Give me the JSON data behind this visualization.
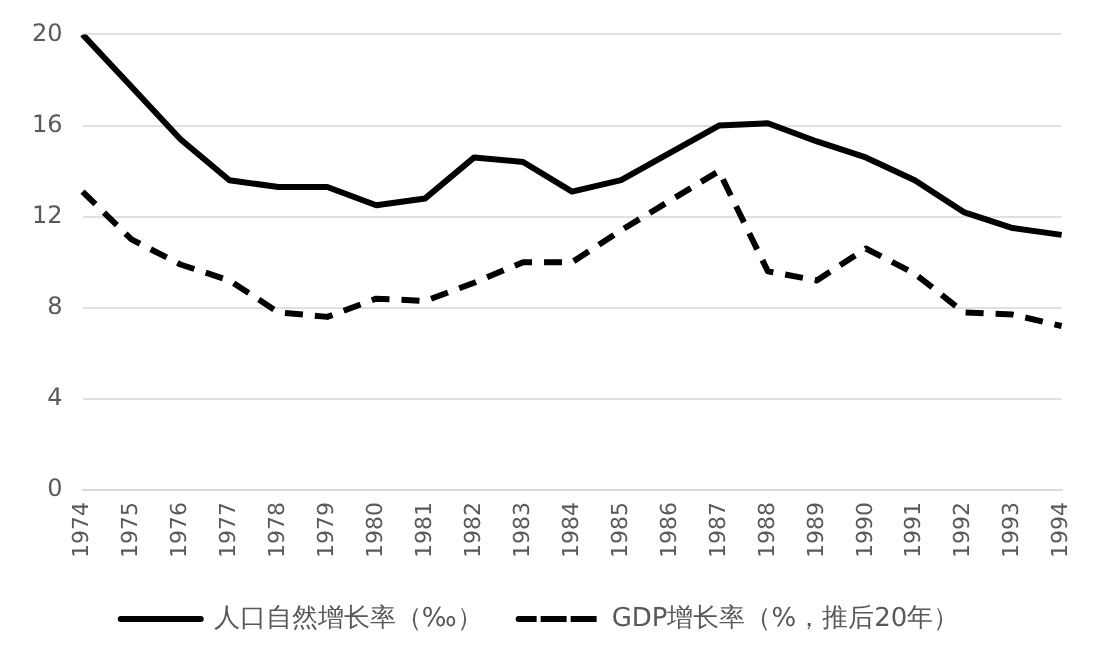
{
  "chart_data": {
    "type": "line",
    "categories": [
      "1974",
      "1975",
      "1976",
      "1977",
      "1978",
      "1979",
      "1980",
      "1981",
      "1982",
      "1983",
      "1984",
      "1985",
      "1986",
      "1987",
      "1988",
      "1989",
      "1990",
      "1991",
      "1992",
      "1993",
      "1994"
    ],
    "series": [
      {
        "name": "人口自然增长率（‰）",
        "color": "#000000",
        "line_style": "solid",
        "values": [
          20,
          17.7,
          15.4,
          13.6,
          13.3,
          13.3,
          12.5,
          12.8,
          14.6,
          14.4,
          13.1,
          13.6,
          14.8,
          16.0,
          16.1,
          15.3,
          14.6,
          13.6,
          12.2,
          11.5,
          11.2
        ]
      },
      {
        "name": "GDP增长率（%，推后20年）",
        "color": "#000000",
        "line_style": "dashed",
        "values": [
          13.1,
          11.0,
          9.9,
          9.2,
          7.8,
          7.6,
          8.4,
          8.3,
          9.1,
          10.0,
          10.0,
          11.4,
          12.7,
          14.0,
          9.6,
          9.2,
          10.6,
          9.5,
          7.8,
          7.7,
          7.2
        ]
      }
    ],
    "ylim": [
      0,
      20
    ],
    "yticks": [
      0,
      4,
      8,
      12,
      16,
      20
    ],
    "grid": "y",
    "legend": "bottom",
    "marker": "none"
  }
}
